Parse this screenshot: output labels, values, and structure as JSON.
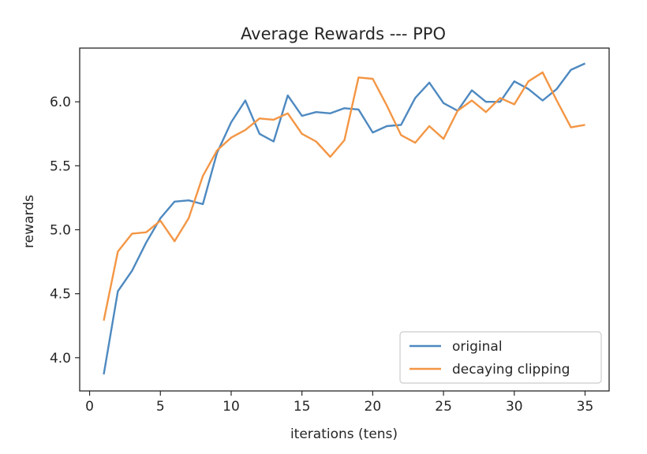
{
  "chart_data": {
    "type": "line",
    "title": "Average Rewards --- PPO",
    "xlabel": "iterations (tens)",
    "ylabel": "rewards",
    "xlim": [
      -0.7,
      36.7
    ],
    "ylim": [
      3.74,
      6.42
    ],
    "xticks": [
      0,
      5,
      10,
      15,
      20,
      25,
      30,
      35
    ],
    "yticks": [
      4.0,
      4.5,
      5.0,
      5.5,
      6.0
    ],
    "xtick_labels": [
      "0",
      "5",
      "10",
      "15",
      "20",
      "25",
      "30",
      "35"
    ],
    "ytick_labels": [
      "4.0",
      "4.5",
      "5.0",
      "5.5",
      "6.0"
    ],
    "grid": false,
    "legend_position": "bottom-right",
    "x": [
      1,
      2,
      3,
      4,
      5,
      6,
      7,
      8,
      9,
      10,
      11,
      12,
      13,
      14,
      15,
      16,
      17,
      18,
      19,
      20,
      21,
      22,
      23,
      24,
      25,
      26,
      27,
      28,
      29,
      30,
      31,
      32,
      33,
      34,
      35
    ],
    "series": [
      {
        "name": "original",
        "color": "#4e89c0",
        "values": [
          3.87,
          4.52,
          4.68,
          4.9,
          5.09,
          5.22,
          5.23,
          5.2,
          5.6,
          5.84,
          6.01,
          5.75,
          5.69,
          6.05,
          5.89,
          5.92,
          5.91,
          5.95,
          5.94,
          5.76,
          5.81,
          5.82,
          6.03,
          6.15,
          5.99,
          5.93,
          6.09,
          6.0,
          6.0,
          6.16,
          6.1,
          6.01,
          6.1,
          6.25,
          6.3
        ]
      },
      {
        "name": "decaying clipping",
        "color": "#f39645",
        "values": [
          4.29,
          4.83,
          4.97,
          4.98,
          5.07,
          4.91,
          5.09,
          5.42,
          5.62,
          5.72,
          5.78,
          5.87,
          5.86,
          5.91,
          5.75,
          5.69,
          5.57,
          5.7,
          6.19,
          6.18,
          5.97,
          5.74,
          5.68,
          5.81,
          5.71,
          5.93,
          6.01,
          5.92,
          6.03,
          5.98,
          6.16,
          6.23,
          6.01,
          5.8,
          5.82
        ]
      }
    ]
  }
}
